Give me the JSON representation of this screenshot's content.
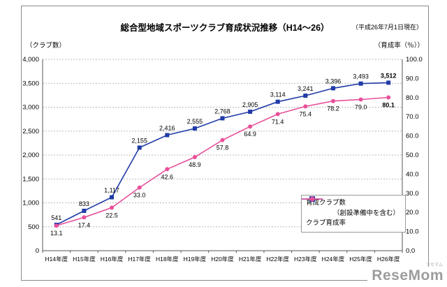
{
  "header": {
    "title": "総合型地域スポーツクラブ育成状況推移（H14～26）",
    "note": "（平成26年7月1日現在）"
  },
  "axes": {
    "left_unit": "（クラブ数）",
    "right_unit": "（育成率（％））"
  },
  "legend": {
    "series1_label": "育成クラブ数",
    "series1_sub": "（創設準備中を含む）",
    "series2_label": "クラブ育成率"
  },
  "watermark": {
    "text": "ReseMom",
    "subtext": "リセマム"
  },
  "chart_data": {
    "type": "line",
    "title": "総合型地域スポーツクラブ育成状況推移（H14～26）",
    "grid": "dotted-horizontal",
    "legend_position": "bottom-right-inside",
    "categories": [
      "H14年度",
      "H15年度",
      "H16年度",
      "H17年度",
      "H18年度",
      "H19年度",
      "H20年度",
      "H21年度",
      "H22年度",
      "H23年度",
      "H24年度",
      "H25年度",
      "H26年度"
    ],
    "series": [
      {
        "id": "clubs",
        "name": "育成クラブ数（創設準備中を含む）",
        "axis": "left",
        "color": "#1f3ba6",
        "marker": "square",
        "values": [
          541,
          833,
          1117,
          2155,
          2416,
          2555,
          2768,
          2905,
          3114,
          3241,
          3396,
          3493,
          3512
        ],
        "labels": [
          "541",
          "833",
          "1,117",
          "2,155",
          "2,416",
          "2,555",
          "2,768",
          "2,905",
          "3,114",
          "3,241",
          "3,396",
          "3,493",
          "3,512"
        ]
      },
      {
        "id": "rate",
        "name": "クラブ育成率",
        "axis": "right",
        "color": "#e8509a",
        "marker": "circle",
        "values": [
          13.1,
          17.4,
          22.5,
          33.0,
          42.6,
          48.9,
          57.8,
          64.9,
          71.4,
          75.4,
          78.2,
          79.0,
          80.1
        ],
        "labels": [
          "13.1",
          "17.4",
          "22.5",
          "33.0",
          "42.6",
          "48.9",
          "57.8",
          "64.9",
          "71.4",
          "75.4",
          "78.2",
          "79.0",
          "80.1"
        ]
      }
    ],
    "left_axis": {
      "label": "（クラブ数）",
      "min": 0,
      "max": 4000,
      "step": 500,
      "ticks": [
        "0",
        "500",
        "1,000",
        "1,500",
        "2,000",
        "2,500",
        "3,000",
        "3,500",
        "4,000"
      ]
    },
    "right_axis": {
      "label": "（育成率（％））",
      "min": 0,
      "max": 100,
      "step": 10,
      "ticks": [
        "0.0",
        "10.0",
        "20.0",
        "30.0",
        "40.0",
        "50.0",
        "60.0",
        "70.0",
        "80.0",
        "90.0",
        "100.0"
      ]
    }
  }
}
